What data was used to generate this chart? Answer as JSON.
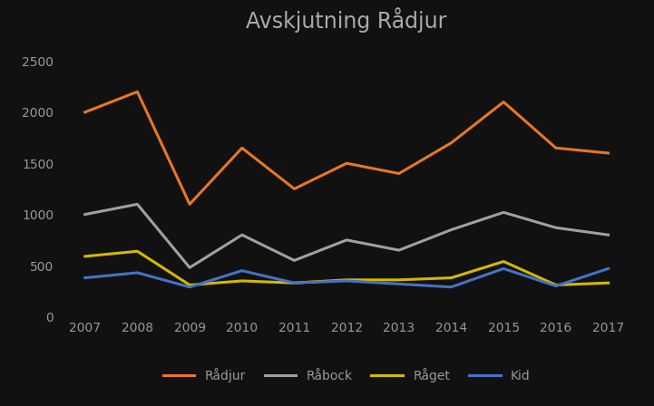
{
  "title": "Avskjutning Rådjur",
  "years": [
    2007,
    2008,
    2009,
    2010,
    2011,
    2012,
    2013,
    2014,
    2015,
    2016,
    2017
  ],
  "radjur": [
    2000,
    2200,
    1100,
    1650,
    1250,
    1500,
    1400,
    1700,
    2100,
    1650,
    1600
  ],
  "rabock": [
    1000,
    1100,
    480,
    800,
    550,
    750,
    650,
    850,
    1020,
    870,
    800
  ],
  "raget": [
    590,
    640,
    310,
    350,
    330,
    360,
    360,
    380,
    540,
    310,
    330
  ],
  "kid": [
    380,
    430,
    290,
    450,
    330,
    350,
    320,
    290,
    470,
    300,
    470
  ],
  "radjur_color": "#E87722",
  "rabock_color": "#A0A0A0",
  "raget_color": "#D4B800",
  "kid_color": "#4472C4",
  "background_color": "#111111",
  "text_color": "#999999",
  "title_color": "#aaaaaa",
  "ylim": [
    0,
    2700
  ],
  "yticks": [
    0,
    500,
    1000,
    1500,
    2000,
    2500
  ],
  "legend_labels": [
    "Rådjur",
    "Råbock",
    "Råget",
    "Kid"
  ],
  "linewidth": 2.2,
  "title_fontsize": 17,
  "tick_fontsize": 10,
  "legend_fontsize": 10
}
